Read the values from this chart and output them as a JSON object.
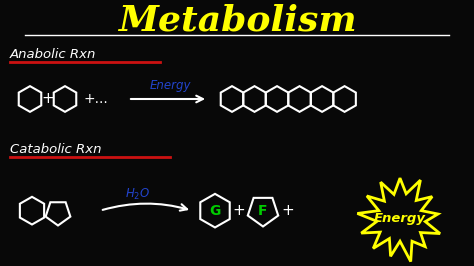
{
  "bg_color": "#080808",
  "title": "Metabolism",
  "title_color": "#ffff00",
  "title_fontsize": 26,
  "white": "#ffffff",
  "blue": "#2244cc",
  "green": "#00cc00",
  "yellow": "#ffff00",
  "red": "#cc1111",
  "anabolic_label": "Anabolic Rxn",
  "catabolic_label": "Catabolic Rxn"
}
